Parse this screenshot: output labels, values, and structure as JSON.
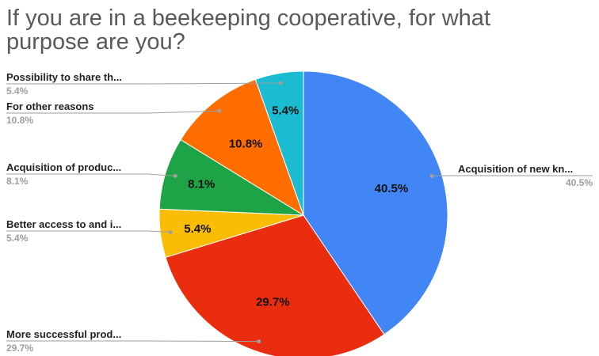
{
  "chart_data": {
    "type": "pie",
    "title": "If you are in a beekeeping cooperative, for what purpose are you?",
    "slices": [
      {
        "label": "Acquisition of new kn...",
        "value": 40.5,
        "display": "40.5%",
        "color": "#4285f4"
      },
      {
        "label": "More successful prod...",
        "value": 29.7,
        "display": "29.7%",
        "color": "#ea2c0f"
      },
      {
        "label": "Better access to and i...",
        "value": 5.4,
        "display": "5.4%",
        "color": "#fbbc04"
      },
      {
        "label": "Acquisition of produc...",
        "value": 8.1,
        "display": "8.1%",
        "color": "#1ea446"
      },
      {
        "label": "For other reasons",
        "value": 10.8,
        "display": "10.8%",
        "color": "#ff6d01"
      },
      {
        "label": "Possibility to share th...",
        "value": 5.4,
        "display": "5.4%",
        "color": "#1bbcd1"
      }
    ],
    "start_angle": "12 o'clock",
    "direction": "clockwise",
    "legend": "callout labels with leader lines"
  }
}
